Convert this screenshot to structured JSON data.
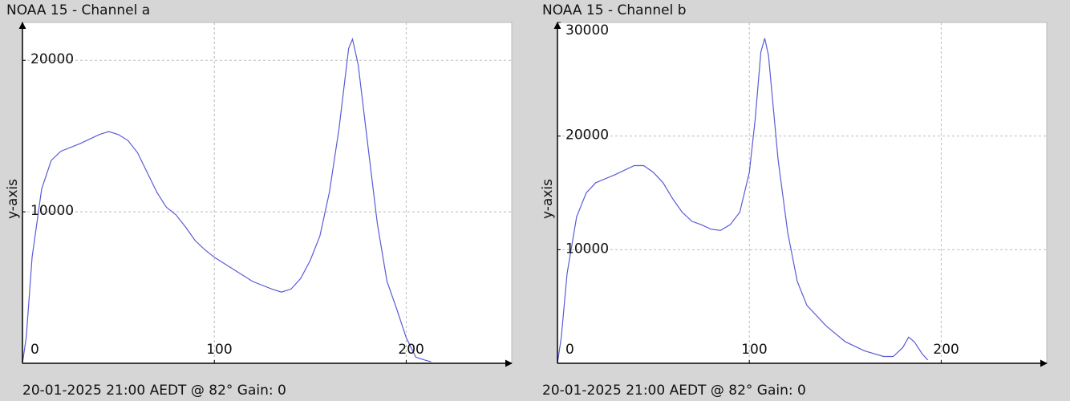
{
  "chart_data": [
    {
      "type": "line",
      "title": "NOAA 15 - Channel a",
      "ylabel": "y-axis",
      "caption": "20-01-2025 21:00 AEDT @ 82° Gain: 0",
      "x": [
        0,
        2,
        5,
        10,
        15,
        20,
        30,
        40,
        45,
        50,
        55,
        60,
        65,
        70,
        75,
        80,
        85,
        90,
        95,
        100,
        110,
        120,
        130,
        135,
        140,
        145,
        150,
        155,
        160,
        165,
        170,
        172,
        175,
        180,
        185,
        190,
        195,
        200,
        205,
        210,
        213
      ],
      "series": [
        {
          "color": "#5b5bd6",
          "values": [
            0,
            1750,
            7000,
            11500,
            13400,
            14000,
            14500,
            15100,
            15300,
            15100,
            14700,
            13900,
            12600,
            11300,
            10300,
            9800,
            9000,
            8100,
            7500,
            7000,
            6200,
            5400,
            4900,
            4700,
            4900,
            5600,
            6800,
            8400,
            11300,
            15500,
            20800,
            21400,
            19700,
            14400,
            9200,
            5400,
            3600,
            1700,
            400,
            200,
            100
          ]
        }
      ],
      "xlim": [
        0,
        255
      ],
      "ylim": [
        0,
        22500
      ],
      "xticks": [
        0,
        100,
        200
      ],
      "yticks": [
        10000,
        20000
      ],
      "grid": true
    },
    {
      "type": "line",
      "title": "NOAA 15 - Channel b",
      "ylabel": "y-axis",
      "caption": "20-01-2025 21:00 AEDT @ 82° Gain: 0",
      "x": [
        0,
        2,
        5,
        10,
        15,
        20,
        30,
        40,
        45,
        50,
        55,
        60,
        65,
        70,
        75,
        80,
        85,
        90,
        95,
        100,
        103,
        106,
        108,
        110,
        115,
        120,
        125,
        130,
        140,
        150,
        160,
        170,
        175,
        180,
        183,
        186,
        190,
        193
      ],
      "series": [
        {
          "color": "#5b5bd6",
          "values": [
            0,
            2300,
            7900,
            12900,
            15000,
            15900,
            16600,
            17400,
            17400,
            16800,
            15900,
            14500,
            13300,
            12500,
            12200,
            11800,
            11700,
            12200,
            13300,
            16800,
            21400,
            27400,
            28600,
            27100,
            17900,
            11500,
            7200,
            5100,
            3300,
            1900,
            1100,
            600,
            600,
            1400,
            2300,
            1900,
            850,
            300
          ]
        }
      ],
      "xlim": [
        0,
        255
      ],
      "ylim": [
        0,
        30000
      ],
      "xticks": [
        0,
        100,
        200
      ],
      "yticks": [
        10000,
        20000,
        30000
      ],
      "grid": true
    }
  ]
}
